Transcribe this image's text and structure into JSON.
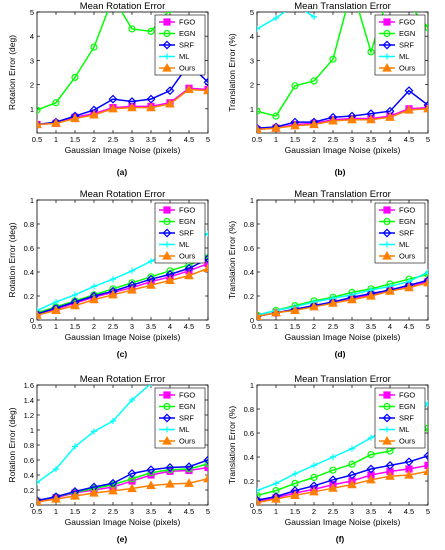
{
  "chart_data": [
    {
      "type": "line",
      "panel_label": "(a)",
      "title": "Mean Rotation Error",
      "xlabel": "Gaussian Image Noise (pixels)",
      "ylabel": "Rotation Error (deg)",
      "xlim": [
        0.5,
        5
      ],
      "ylim": [
        0,
        5
      ],
      "xticks": [
        "0.5",
        "1",
        "1.5",
        "2",
        "2.5",
        "3",
        "3.5",
        "4",
        "4.5",
        "5"
      ],
      "yticks": [
        "1",
        "2",
        "3",
        "4",
        "5"
      ],
      "x": [
        0.5,
        1,
        1.5,
        2,
        2.5,
        3,
        3.5,
        4,
        4.5,
        5
      ],
      "legend_position": "top-right",
      "series": [
        {
          "name": "FGO",
          "color": "#ff00ff",
          "marker": "square",
          "values": [
            0.35,
            0.4,
            0.65,
            0.8,
            1.05,
            1.1,
            1.1,
            1.25,
            1.85,
            1.8
          ]
        },
        {
          "name": "EGN",
          "color": "#00ff00",
          "marker": "circle",
          "values": [
            0.95,
            1.25,
            2.3,
            3.55,
            5.6,
            4.3,
            4.2,
            5.1,
            5.8,
            5.5
          ]
        },
        {
          "name": "SRF",
          "color": "#0000ff",
          "marker": "diamond",
          "values": [
            0.35,
            0.45,
            0.7,
            0.95,
            1.4,
            1.3,
            1.4,
            1.75,
            2.85,
            2.1
          ]
        },
        {
          "name": "ML",
          "color": "#00ffff",
          "marker": "plus",
          "values": [
            null,
            null,
            null,
            null,
            null,
            null,
            null,
            null,
            null,
            null
          ]
        },
        {
          "name": "Ours",
          "color": "#ff8000",
          "marker": "triangle",
          "values": [
            0.35,
            0.4,
            0.6,
            0.75,
            1.0,
            1.05,
            1.05,
            1.2,
            1.8,
            1.75
          ]
        }
      ]
    },
    {
      "type": "line",
      "panel_label": "(b)",
      "title": "Mean Translation Error",
      "xlabel": "Gaussian Image Noise (pixels)",
      "ylabel": "Translation Error (%)",
      "xlim": [
        0.5,
        5
      ],
      "ylim": [
        0,
        5
      ],
      "xticks": [
        "0.5",
        "1",
        "1.5",
        "2",
        "2.5",
        "3",
        "3.5",
        "4",
        "4.5",
        "5"
      ],
      "yticks": [
        "1",
        "2",
        "3",
        "4",
        "5"
      ],
      "x": [
        0.5,
        1,
        1.5,
        2,
        2.5,
        3,
        3.5,
        4,
        4.5,
        5
      ],
      "legend_position": "top-right",
      "series": [
        {
          "name": "FGO",
          "color": "#ff00ff",
          "marker": "square",
          "values": [
            0.15,
            0.2,
            0.35,
            0.4,
            0.55,
            0.6,
            0.6,
            0.7,
            1.0,
            1.05
          ]
        },
        {
          "name": "EGN",
          "color": "#00ff00",
          "marker": "circle",
          "values": [
            0.9,
            0.7,
            1.95,
            2.15,
            3.05,
            6.0,
            3.35,
            5.9,
            5.3,
            4.35
          ]
        },
        {
          "name": "SRF",
          "color": "#0000ff",
          "marker": "diamond",
          "values": [
            0.2,
            0.25,
            0.45,
            0.45,
            0.65,
            0.7,
            0.8,
            0.9,
            1.75,
            1.15
          ]
        },
        {
          "name": "ML",
          "color": "#00ffff",
          "marker": "plus",
          "values": [
            4.3,
            4.75,
            5.3,
            4.8,
            null,
            null,
            null,
            null,
            null,
            null
          ]
        },
        {
          "name": "Ours",
          "color": "#ff8000",
          "marker": "triangle",
          "values": [
            0.15,
            0.2,
            0.3,
            0.35,
            0.5,
            0.55,
            0.55,
            0.65,
            0.95,
            1.0
          ]
        }
      ]
    },
    {
      "type": "line",
      "panel_label": "(c)",
      "title": "Mean Rotation Error",
      "xlabel": "Gaussian Image Noise (pixels)",
      "ylabel": "Rotation Error (deg)",
      "xlim": [
        0.5,
        5
      ],
      "ylim": [
        0,
        1
      ],
      "xticks": [
        "0.5",
        "1",
        "1.5",
        "2",
        "2.5",
        "3",
        "3.5",
        "4",
        "4.5",
        "5"
      ],
      "yticks": [
        "0",
        "0.2",
        "0.4",
        "0.6",
        "0.8",
        "1"
      ],
      "x": [
        0.5,
        1,
        1.5,
        2,
        2.5,
        3,
        3.5,
        4,
        4.5,
        5
      ],
      "legend_position": "top-right",
      "series": [
        {
          "name": "FGO",
          "color": "#ff00ff",
          "marker": "square",
          "values": [
            0.05,
            0.09,
            0.14,
            0.19,
            0.23,
            0.27,
            0.32,
            0.36,
            0.41,
            0.47
          ]
        },
        {
          "name": "EGN",
          "color": "#00ff00",
          "marker": "circle",
          "values": [
            0.06,
            0.11,
            0.16,
            0.21,
            0.26,
            0.31,
            0.36,
            0.41,
            0.46,
            0.52
          ]
        },
        {
          "name": "SRF",
          "color": "#0000ff",
          "marker": "diamond",
          "values": [
            0.05,
            0.1,
            0.15,
            0.2,
            0.24,
            0.29,
            0.34,
            0.38,
            0.43,
            0.51
          ]
        },
        {
          "name": "ML",
          "color": "#00ffff",
          "marker": "plus",
          "values": [
            0.08,
            0.15,
            0.21,
            0.28,
            0.34,
            0.41,
            0.49,
            0.56,
            0.63,
            0.72
          ]
        },
        {
          "name": "Ours",
          "color": "#ff8000",
          "marker": "triangle",
          "values": [
            0.04,
            0.08,
            0.12,
            0.17,
            0.21,
            0.25,
            0.29,
            0.33,
            0.37,
            0.43
          ]
        }
      ]
    },
    {
      "type": "line",
      "panel_label": "(d)",
      "title": "Mean Translation Error",
      "xlabel": "Gaussian Image Noise (pixels)",
      "ylabel": "Translation Error (%)",
      "xlim": [
        0.5,
        5
      ],
      "ylim": [
        0,
        1
      ],
      "xticks": [
        "0.5",
        "1",
        "1.5",
        "2",
        "2.5",
        "3",
        "3.5",
        "4",
        "4.5",
        "5"
      ],
      "yticks": [
        "0",
        "0.2",
        "0.4",
        "0.6",
        "0.8",
        "1"
      ],
      "x": [
        0.5,
        1,
        1.5,
        2,
        2.5,
        3,
        3.5,
        4,
        4.5,
        5
      ],
      "legend_position": "top-right",
      "series": [
        {
          "name": "FGO",
          "color": "#ff00ff",
          "marker": "square",
          "values": [
            0.03,
            0.06,
            0.09,
            0.12,
            0.15,
            0.18,
            0.21,
            0.25,
            0.28,
            0.32
          ]
        },
        {
          "name": "EGN",
          "color": "#00ff00",
          "marker": "circle",
          "values": [
            0.04,
            0.08,
            0.12,
            0.16,
            0.19,
            0.23,
            0.26,
            0.3,
            0.34,
            0.38
          ]
        },
        {
          "name": "SRF",
          "color": "#0000ff",
          "marker": "diamond",
          "values": [
            0.03,
            0.06,
            0.09,
            0.12,
            0.15,
            0.19,
            0.22,
            0.25,
            0.29,
            0.33
          ]
        },
        {
          "name": "ML",
          "color": "#00ffff",
          "marker": "plus",
          "values": [
            0.04,
            0.08,
            0.11,
            0.15,
            0.18,
            0.21,
            0.25,
            0.28,
            0.32,
            0.4
          ]
        },
        {
          "name": "Ours",
          "color": "#ff8000",
          "marker": "triangle",
          "values": [
            0.03,
            0.06,
            0.08,
            0.11,
            0.14,
            0.17,
            0.2,
            0.24,
            0.27,
            0.31
          ]
        }
      ]
    },
    {
      "type": "line",
      "panel_label": "(e)",
      "title": "Mean Rotation Error",
      "xlabel": "Gaussian Image Noise (pixels)",
      "ylabel": "Rotation Error (deg)",
      "xlim": [
        0.5,
        5
      ],
      "ylim": [
        0,
        1.6
      ],
      "xticks": [
        "0.5",
        "1",
        "1.5",
        "2",
        "2.5",
        "3",
        "3.5",
        "4",
        "4.5",
        "5"
      ],
      "yticks": [
        "0",
        "0.2",
        "0.4",
        "0.6",
        "0.8",
        "1",
        "1.2",
        "1.4",
        "1.6"
      ],
      "x": [
        0.5,
        1,
        1.5,
        2,
        2.5,
        3,
        3.5,
        4,
        4.5,
        5
      ],
      "legend_position": "top-right",
      "series": [
        {
          "name": "FGO",
          "color": "#ff00ff",
          "marker": "square",
          "values": [
            0.05,
            0.1,
            0.16,
            0.2,
            0.24,
            0.32,
            0.4,
            0.45,
            0.46,
            0.5
          ]
        },
        {
          "name": "EGN",
          "color": "#00ff00",
          "marker": "circle",
          "values": [
            0.06,
            0.11,
            0.17,
            0.22,
            0.27,
            0.35,
            0.43,
            0.47,
            0.48,
            0.55
          ]
        },
        {
          "name": "SRF",
          "color": "#0000ff",
          "marker": "diamond",
          "values": [
            0.06,
            0.11,
            0.18,
            0.24,
            0.29,
            0.42,
            0.47,
            0.5,
            0.51,
            0.6
          ]
        },
        {
          "name": "ML",
          "color": "#00ffff",
          "marker": "plus",
          "values": [
            0.3,
            0.48,
            0.78,
            0.98,
            1.12,
            1.4,
            1.62,
            null,
            null,
            null
          ]
        },
        {
          "name": "Ours",
          "color": "#ff8000",
          "marker": "triangle",
          "values": [
            0.04,
            0.08,
            0.12,
            0.16,
            0.19,
            0.22,
            0.26,
            0.28,
            0.29,
            0.35
          ]
        }
      ]
    },
    {
      "type": "line",
      "panel_label": "(f)",
      "title": "Mean Translation Error",
      "xlabel": "Gaussian Image Noise (pixels)",
      "ylabel": "Translation Error (%)",
      "xlim": [
        0.5,
        5
      ],
      "ylim": [
        0,
        1
      ],
      "xticks": [
        "0.5",
        "1",
        "1.5",
        "2",
        "2.5",
        "3",
        "3.5",
        "4",
        "4.5",
        "5"
      ],
      "yticks": [
        "0",
        "0.2",
        "0.4",
        "0.6",
        "0.8",
        "1"
      ],
      "x": [
        0.5,
        1,
        1.5,
        2,
        2.5,
        3,
        3.5,
        4,
        4.5,
        5
      ],
      "legend_position": "top-right",
      "series": [
        {
          "name": "FGO",
          "color": "#ff00ff",
          "marker": "square",
          "values": [
            0.03,
            0.06,
            0.1,
            0.13,
            0.17,
            0.2,
            0.25,
            0.28,
            0.3,
            0.33
          ]
        },
        {
          "name": "EGN",
          "color": "#00ff00",
          "marker": "circle",
          "values": [
            0.08,
            0.12,
            0.18,
            0.23,
            0.29,
            0.34,
            0.42,
            0.45,
            0.55,
            0.64
          ]
        },
        {
          "name": "SRF",
          "color": "#0000ff",
          "marker": "diamond",
          "values": [
            0.04,
            0.07,
            0.12,
            0.16,
            0.21,
            0.25,
            0.3,
            0.33,
            0.36,
            0.41
          ]
        },
        {
          "name": "ML",
          "color": "#00ffff",
          "marker": "plus",
          "values": [
            0.12,
            0.18,
            0.26,
            0.33,
            0.4,
            0.47,
            0.56,
            0.65,
            0.64,
            0.85
          ]
        },
        {
          "name": "Ours",
          "color": "#ff8000",
          "marker": "triangle",
          "values": [
            0.02,
            0.05,
            0.08,
            0.11,
            0.14,
            0.17,
            0.21,
            0.24,
            0.25,
            0.28
          ]
        }
      ]
    }
  ]
}
